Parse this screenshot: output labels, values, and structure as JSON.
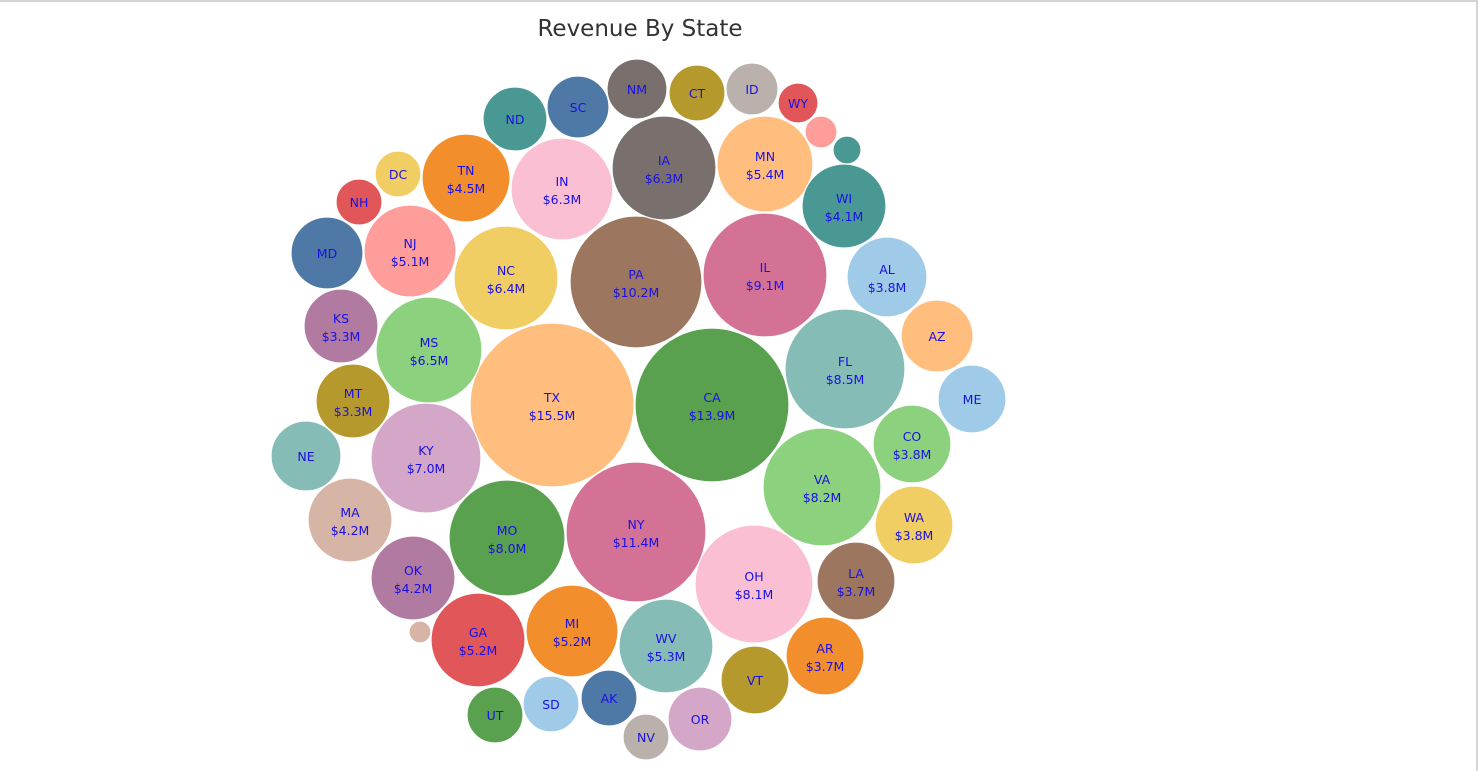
{
  "chart_data": {
    "type": "packed-bubble",
    "title": "Revenue By State",
    "label_color": "#1a10e6",
    "items": [
      {
        "name": "TX",
        "label": "$15.5M",
        "value": 15.5,
        "color": "#ffbe7d"
      },
      {
        "name": "CA",
        "label": "$13.9M",
        "value": 13.9,
        "color": "#59a14f"
      },
      {
        "name": "NY",
        "label": "$11.4M",
        "value": 11.4,
        "color": "#d37295"
      },
      {
        "name": "PA",
        "label": "$10.2M",
        "value": 10.2,
        "color": "#9d7660"
      },
      {
        "name": "IL",
        "label": "$9.1M",
        "value": 9.1,
        "color": "#d37295"
      },
      {
        "name": "FL",
        "label": "$8.5M",
        "value": 8.5,
        "color": "#86bcb6"
      },
      {
        "name": "VA",
        "label": "$8.2M",
        "value": 8.2,
        "color": "#8cd17d"
      },
      {
        "name": "OH",
        "label": "$8.1M",
        "value": 8.1,
        "color": "#fabfd2"
      },
      {
        "name": "MO",
        "label": "$8.0M",
        "value": 8.0,
        "color": "#59a14f"
      },
      {
        "name": "KY",
        "label": "$7.0M",
        "value": 7.0,
        "color": "#d4a6c8"
      },
      {
        "name": "MS",
        "label": "$6.5M",
        "value": 6.5,
        "color": "#8cd17d"
      },
      {
        "name": "NC",
        "label": "$6.4M",
        "value": 6.4,
        "color": "#f1ce63"
      },
      {
        "name": "IN",
        "label": "$6.3M",
        "value": 6.3,
        "color": "#fabfd2"
      },
      {
        "name": "IA",
        "label": "$6.3M",
        "value": 6.3,
        "color": "#79706e"
      },
      {
        "name": "MN",
        "label": "$5.4M",
        "value": 5.4,
        "color": "#ffbe7d"
      },
      {
        "name": "WV",
        "label": "$5.3M",
        "value": 5.3,
        "color": "#86bcb6"
      },
      {
        "name": "GA",
        "label": "$5.2M",
        "value": 5.2,
        "color": "#e15759"
      },
      {
        "name": "MI",
        "label": "$5.2M",
        "value": 5.2,
        "color": "#f28e2b"
      },
      {
        "name": "NJ",
        "label": "$5.1M",
        "value": 5.1,
        "color": "#ff9d9a"
      },
      {
        "name": "TN",
        "label": "$4.5M",
        "value": 4.5,
        "color": "#f28e2b"
      },
      {
        "name": "MA",
        "label": "$4.2M",
        "value": 4.2,
        "color": "#d7b5a6"
      },
      {
        "name": "OK",
        "label": "$4.2M",
        "value": 4.2,
        "color": "#b07aa1"
      },
      {
        "name": "WI",
        "label": "$4.1M",
        "value": 4.1,
        "color": "#499894"
      },
      {
        "name": "AL",
        "label": "$3.8M",
        "value": 3.8,
        "color": "#a0cbe8"
      },
      {
        "name": "CO",
        "label": "$3.8M",
        "value": 3.8,
        "color": "#8cd17d"
      },
      {
        "name": "WA",
        "label": "$3.8M",
        "value": 3.8,
        "color": "#f1ce63"
      },
      {
        "name": "LA",
        "label": "$3.7M",
        "value": 3.7,
        "color": "#9d7660"
      },
      {
        "name": "AR",
        "label": "$3.7M",
        "value": 3.7,
        "color": "#f28e2b"
      },
      {
        "name": "KS",
        "label": "$3.3M",
        "value": 3.3,
        "color": "#b07aa1"
      },
      {
        "name": "MT",
        "label": "$3.3M",
        "value": 3.3,
        "color": "#b6992d"
      },
      {
        "name": "AZ",
        "label": "",
        "color": "#ffbe7d"
      },
      {
        "name": "ME",
        "label": "",
        "color": "#a0cbe8"
      },
      {
        "name": "NE",
        "label": "",
        "color": "#86bcb6"
      },
      {
        "name": "MD",
        "label": "",
        "color": "#4e79a7"
      },
      {
        "name": "VT",
        "label": "",
        "color": "#b6992d"
      },
      {
        "name": "OR",
        "label": "",
        "color": "#d4a6c8"
      },
      {
        "name": "ND",
        "label": "",
        "color": "#499894"
      },
      {
        "name": "SC",
        "label": "",
        "color": "#4e79a7"
      },
      {
        "name": "NM",
        "label": "",
        "color": "#79706e"
      },
      {
        "name": "CT",
        "label": "",
        "color": "#b6992d"
      },
      {
        "name": "ID",
        "label": "",
        "color": "#bab0ac"
      },
      {
        "name": "SD",
        "label": "",
        "color": "#a0cbe8"
      },
      {
        "name": "AK",
        "label": "",
        "color": "#4e79a7"
      },
      {
        "name": "UT",
        "label": "",
        "color": "#59a14f"
      },
      {
        "name": "NV",
        "label": "",
        "color": "#bab0ac"
      },
      {
        "name": "DC",
        "label": "",
        "color": "#f1ce63"
      },
      {
        "name": "NH",
        "label": "",
        "color": "#e15759"
      },
      {
        "name": "WY",
        "label": "",
        "color": "#e15759"
      },
      {
        "name": "",
        "label": "",
        "color": "#ff9d9a"
      },
      {
        "name": "",
        "label": "",
        "color": "#499894"
      },
      {
        "name": "",
        "label": "",
        "color": "#d7b5a6"
      }
    ]
  }
}
